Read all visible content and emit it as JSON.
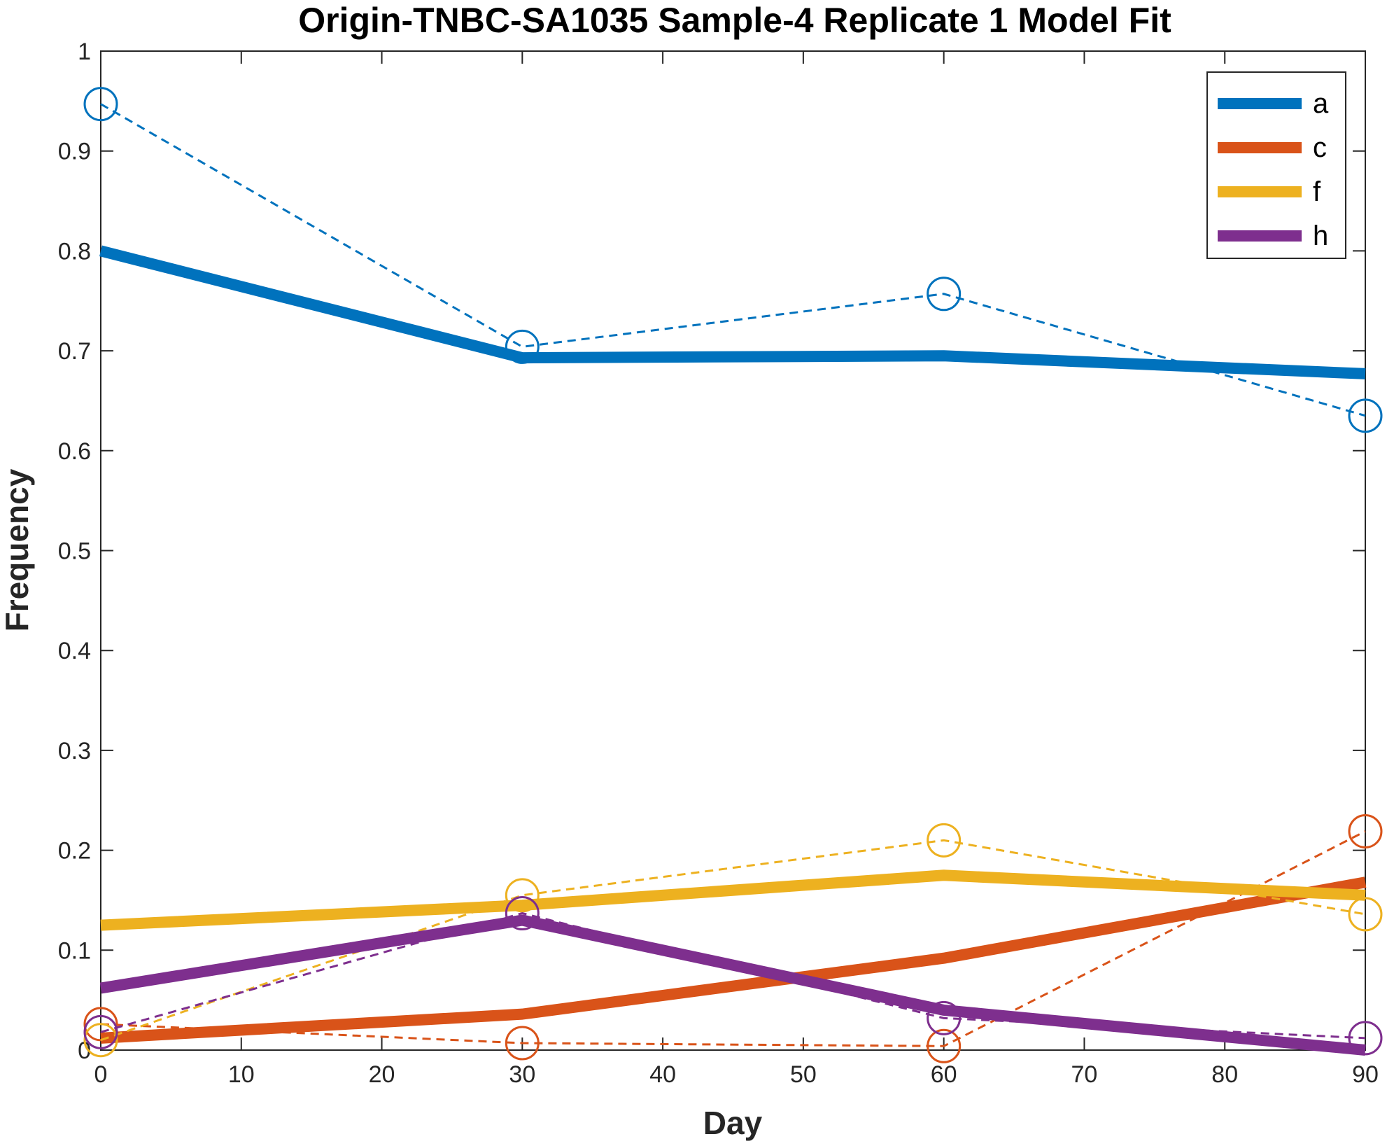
{
  "chart_data": {
    "type": "line",
    "title": "Origin-TNBC-SA1035 Sample-4 Replicate 1 Model Fit",
    "xlabel": "Day",
    "ylabel": "Frequency",
    "xlim": [
      0,
      90
    ],
    "ylim": [
      0,
      1
    ],
    "xticks": [
      0,
      10,
      20,
      30,
      40,
      50,
      60,
      70,
      80,
      90
    ],
    "yticks": [
      0,
      0.1,
      0.2,
      0.3,
      0.4,
      0.5,
      0.6,
      0.7,
      0.8,
      0.9,
      1
    ],
    "x": [
      0,
      30,
      60,
      90
    ],
    "legend_position": "top-right",
    "grid": false,
    "series": [
      {
        "name": "a",
        "color": "#0072BD",
        "model": [
          0.8,
          0.693,
          0.695,
          0.677
        ],
        "observed": [
          0.947,
          0.704,
          0.757,
          0.635
        ]
      },
      {
        "name": "c",
        "color": "#D95319",
        "model": [
          0.012,
          0.036,
          0.092,
          0.168
        ],
        "observed": [
          0.026,
          0.007,
          0.004,
          0.219
        ]
      },
      {
        "name": "f",
        "color": "#EDB120",
        "model": [
          0.125,
          0.145,
          0.175,
          0.155
        ],
        "observed": [
          0.01,
          0.155,
          0.21,
          0.136
        ]
      },
      {
        "name": "h",
        "color": "#7E2F8E",
        "model": [
          0.062,
          0.13,
          0.04,
          0.0
        ],
        "observed": [
          0.018,
          0.137,
          0.032,
          0.012
        ]
      }
    ]
  }
}
